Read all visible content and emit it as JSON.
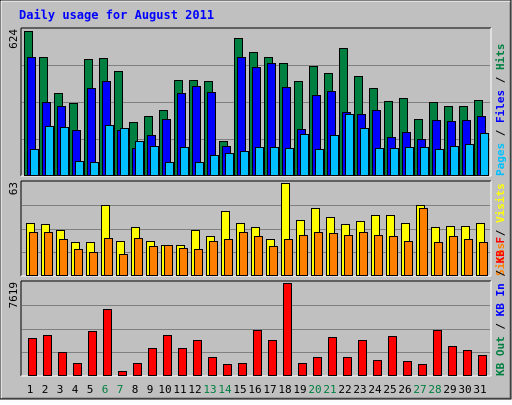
{
  "chart_data": {
    "type": "bar",
    "title": "Daily usage for August 2011",
    "categories": [
      "1",
      "2",
      "3",
      "4",
      "5",
      "6",
      "7",
      "8",
      "9",
      "10",
      "11",
      "12",
      "13",
      "14",
      "15",
      "16",
      "17",
      "18",
      "19",
      "20",
      "21",
      "22",
      "23",
      "24",
      "25",
      "26",
      "27",
      "28",
      "29",
      "30",
      "31"
    ],
    "weekend_days": [
      "6",
      "7",
      "13",
      "14",
      "20",
      "21",
      "27",
      "28"
    ],
    "panels": [
      {
        "id": "hits",
        "max_label": "624",
        "ylim": [
          0,
          624
        ],
        "series": [
          {
            "name": "Hits",
            "color": "#008040",
            "values": [
              620,
              510,
              355,
              312,
              500,
              505,
              450,
              230,
              255,
              282,
              410,
              410,
              405,
              150,
              590,
              530,
              510,
              485,
              408,
              470,
              440,
              545,
              427,
              375,
              320,
              335,
              242,
              318,
              300,
              300,
              325
            ]
          },
          {
            "name": "Files",
            "color": "#0000ff",
            "values": [
              510,
              315,
              300,
              197,
              375,
              405,
              195,
              120,
              175,
              245,
              355,
              385,
              360,
              130,
              510,
              465,
              482,
              380,
              200,
              345,
              365,
              275,
              265,
              280,
              165,
              190,
              160,
              238,
              235,
              238,
              255
            ]
          },
          {
            "name": "Pages",
            "color": "#00c0ff",
            "values": [
              115,
              215,
              210,
              65,
              60,
              220,
              205,
              150,
              130,
              60,
              125,
              60,
              90,
              100,
              105,
              125,
              122,
              120,
              180,
              115,
              175,
              265,
              205,
              120,
              120,
              125,
              125,
              115,
              130,
              135,
              185
            ]
          }
        ],
        "legend": [
          {
            "text": "Hits",
            "color": "#008040"
          },
          {
            "text": "Files",
            "color": "#0000ff"
          },
          {
            "text": "Pages",
            "color": "#00c0ff"
          }
        ]
      },
      {
        "id": "visits",
        "max_label": "63",
        "ylim": [
          0,
          63
        ],
        "series": [
          {
            "name": "Visits",
            "color": "#ffff00",
            "values": [
              36,
              35,
              31,
              23,
              23,
              48,
              24,
              33,
              24,
              21,
              21,
              31,
              27,
              44,
              36,
              33,
              25,
              63,
              38,
              46,
              40,
              35,
              37,
              41,
              41,
              36,
              48,
              33,
              34,
              34,
              36
            ]
          },
          {
            "name": "Sites",
            "color": "#ff8000",
            "values": [
              30,
              30,
              25,
              18,
              16,
              26,
              15,
              26,
              20,
              21,
              19,
              18,
              24,
              25,
              30,
              27,
              20,
              25,
              28,
              30,
              29,
              28,
              30,
              28,
              27,
              24,
              46,
              23,
              27,
              25,
              23
            ]
          }
        ],
        "legend": [
          {
            "text": "Visits",
            "color": "#ffff00"
          },
          {
            "text": "Sites",
            "color": "#ff8000"
          }
        ]
      },
      {
        "id": "kbytes",
        "max_label": "7619",
        "ylim": [
          0,
          7619
        ],
        "series": [
          {
            "name": "KB F",
            "color": "#ff0000",
            "values": [
              3150,
              3380,
              1930,
              1080,
              3710,
              5510,
              450,
              1070,
              2320,
              3320,
              2320,
              2930,
              1530,
              990,
              1030,
              3770,
              2980,
              7619,
              1090,
              1560,
              3230,
              1560,
              2930,
              1300,
              3270,
              1230,
              1000,
              3780,
              2430,
              2100,
              1690
            ]
          }
        ],
        "legend": [
          {
            "text": "KB F",
            "color": "#ff0000"
          },
          {
            "text": "KB In",
            "color": "#0000ff"
          },
          {
            "text": "KB Out",
            "color": "#008040"
          }
        ]
      }
    ]
  },
  "colors": {
    "page_bg": "#ffffff",
    "frame_bg": "#c0c0c0",
    "plot_bg": "#c0c0c0",
    "title": "#0000ff",
    "weekday_label": "#000000",
    "weekend_label": "#008040",
    "slash": "#000000"
  }
}
